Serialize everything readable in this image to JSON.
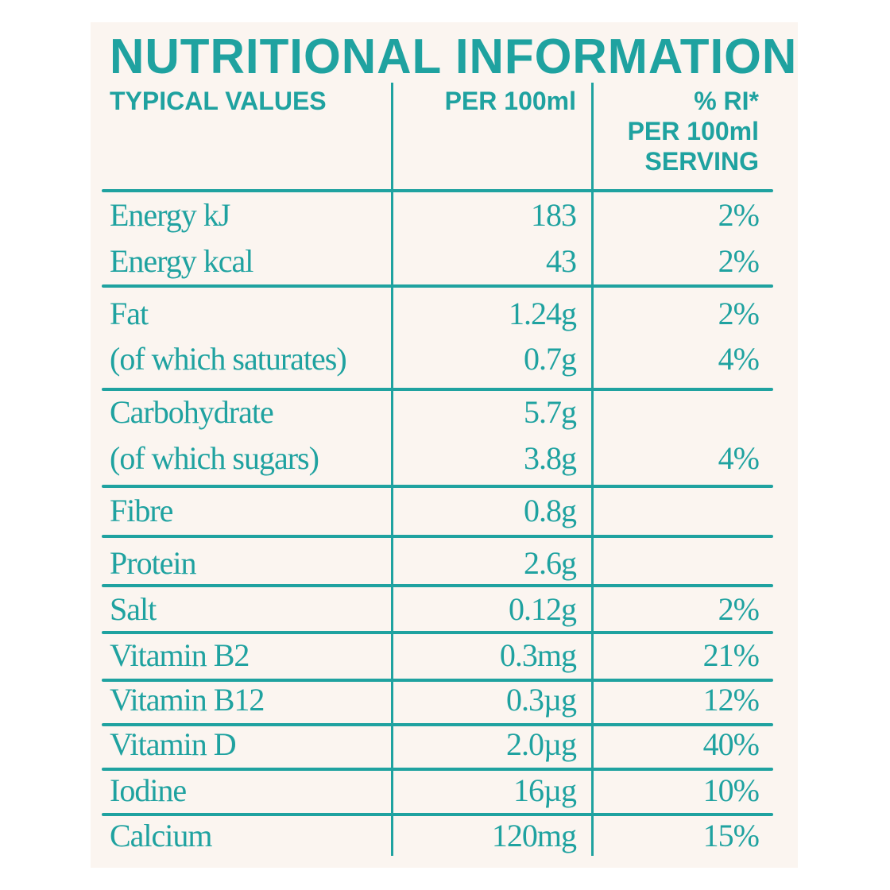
{
  "title": "NUTRITIONAL INFORMATION",
  "headers": {
    "typical_values": "TYPICAL VALUES",
    "per_100ml": "PER 100ml",
    "ri_line1": "% RI*",
    "ri_line2": "PER 100ml",
    "ri_line3": "SERVING"
  },
  "colors": {
    "accent": "#1fa2a0",
    "background": "#fbf5f0"
  },
  "rows": [
    {
      "label": "Energy kJ",
      "per_100ml": "183",
      "ri": "2%"
    },
    {
      "label": "Energy kcal",
      "per_100ml": "43",
      "ri": "2%"
    },
    {
      "label": "Fat",
      "per_100ml": "1.24g",
      "ri": "2%"
    },
    {
      "label": "(of which saturates)",
      "per_100ml": "0.7g",
      "ri": "4%"
    },
    {
      "label": "Carbohydrate",
      "per_100ml": "5.7g",
      "ri": ""
    },
    {
      "label": "(of which sugars)",
      "per_100ml": "3.8g",
      "ri": "4%"
    },
    {
      "label": "Fibre",
      "per_100ml": "0.8g",
      "ri": ""
    },
    {
      "label": "Protein",
      "per_100ml": "2.6g",
      "ri": ""
    },
    {
      "label": "Salt",
      "per_100ml": "0.12g",
      "ri": "2%"
    },
    {
      "label": "Vitamin B2",
      "per_100ml": "0.3mg",
      "ri": "21%"
    },
    {
      "label": "Vitamin B12",
      "per_100ml": "0.3µg",
      "ri": "12%"
    },
    {
      "label": "Vitamin D",
      "per_100ml": "2.0µg",
      "ri": "40%"
    },
    {
      "label": "Iodine",
      "per_100ml": "16µg",
      "ri": "10%"
    },
    {
      "label": "Calcium",
      "per_100ml": "120mg",
      "ri": "15%"
    }
  ]
}
